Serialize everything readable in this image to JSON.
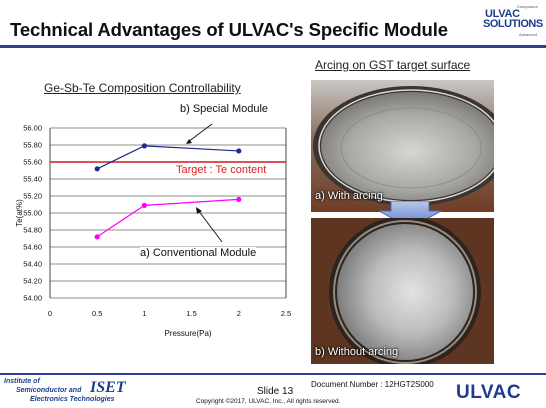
{
  "header": {
    "title": "Technical Advantages of ULVAC's Specific Module",
    "logo_line1": "ULVAC",
    "logo_line2": "SOLUTIONS",
    "logo_small_top": "Composure",
    "logo_small_bottom": "Advanced"
  },
  "chart_heading": "Ge-Sb-Te Composition Controllability",
  "annotations": {
    "special": "b) Special Module",
    "conventional": "a) Conventional Module",
    "target": "Target : Te content"
  },
  "photos": {
    "heading": "Arcing on GST target surface",
    "with_label": "a) With arcing",
    "without_label": "b) Without arcing"
  },
  "footer": {
    "iset_line1": "Institute of",
    "iset_line2": "Semiconductor and",
    "iset_line3": "Electronics Technologies",
    "iset_big": "ISET",
    "slide": "Slide 13",
    "document": "Document Number : 12HGT2S000",
    "copyright": "Copyright ©2017, ULVAC, Inc., All rights reserved.",
    "ulvac": "ULVAC"
  },
  "colors": {
    "accent": "#2b3f95",
    "special_series": "#1f2a8c",
    "conventional_series": "#ff00ff",
    "target_line": "#d11a1a"
  },
  "chart_data": {
    "type": "line",
    "title": "",
    "xlabel": "Pressure(Pa)",
    "ylabel": "Te(at%)",
    "xlim": [
      0,
      2.5
    ],
    "ylim": [
      54.0,
      56.0
    ],
    "x_ticks": [
      "0",
      "0.5",
      "1",
      "1.5",
      "2",
      "2.5"
    ],
    "y_ticks": [
      "54.00",
      "54.20",
      "54.40",
      "54.60",
      "54.80",
      "55.00",
      "55.20",
      "55.40",
      "55.60",
      "55.80",
      "56.00"
    ],
    "grid": "horizontal",
    "target_line": 55.6,
    "series": [
      {
        "name": "b) Special Module",
        "x": [
          0.5,
          1,
          2
        ],
        "y": [
          55.52,
          55.79,
          55.73
        ]
      },
      {
        "name": "a) Conventional Module",
        "x": [
          0.5,
          1,
          2
        ],
        "y": [
          54.72,
          55.09,
          55.16
        ]
      }
    ]
  }
}
